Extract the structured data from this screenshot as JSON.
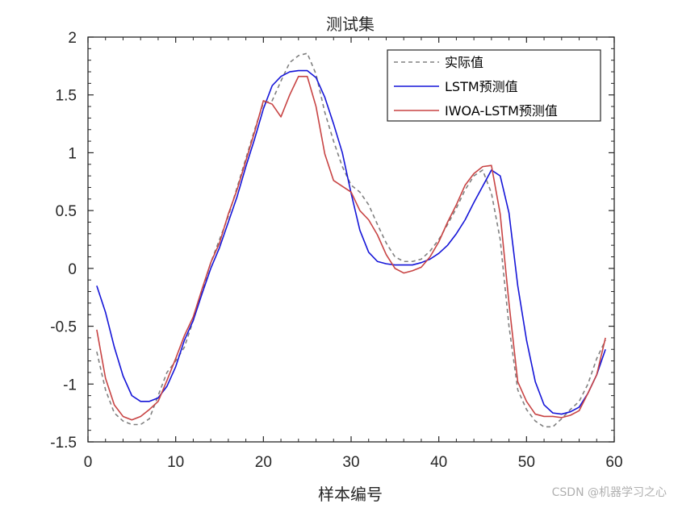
{
  "chart_data": {
    "type": "line",
    "title": "测试集",
    "xlabel": "样本编号",
    "ylabel": "",
    "xlim": [
      0,
      60
    ],
    "ylim": [
      -1.5,
      2
    ],
    "xticks": [
      0,
      10,
      20,
      30,
      40,
      50,
      60
    ],
    "yticks": [
      -1.5,
      -1,
      -0.5,
      0,
      0.5,
      1,
      1.5,
      2
    ],
    "xtick_labels": [
      "0",
      "10",
      "20",
      "30",
      "40",
      "50",
      "60"
    ],
    "ytick_labels": [
      "-1.5",
      "-1",
      "-0.5",
      "0",
      "0.5",
      "1",
      "1.5",
      "2"
    ],
    "grid": false,
    "legend_position": "top-right",
    "x": [
      1,
      2,
      3,
      4,
      5,
      6,
      7,
      8,
      9,
      10,
      11,
      12,
      13,
      14,
      15,
      16,
      17,
      18,
      19,
      20,
      21,
      22,
      23,
      24,
      25,
      26,
      27,
      28,
      29,
      30,
      31,
      32,
      33,
      34,
      35,
      36,
      37,
      38,
      39,
      40,
      41,
      42,
      43,
      44,
      45,
      46,
      47,
      48,
      49,
      50,
      51,
      52,
      53,
      54,
      55,
      56,
      57,
      58,
      59
    ],
    "series": [
      {
        "name": "实际值",
        "color": "#808080",
        "style": "dashed",
        "values": [
          -0.72,
          -1.05,
          -1.25,
          -1.32,
          -1.35,
          -1.35,
          -1.3,
          -1.1,
          -0.9,
          -0.8,
          -0.68,
          -0.45,
          -0.2,
          0.05,
          0.25,
          0.45,
          0.7,
          0.95,
          1.2,
          1.43,
          1.45,
          1.62,
          1.78,
          1.84,
          1.86,
          1.68,
          1.35,
          1.1,
          0.88,
          0.72,
          0.66,
          0.55,
          0.38,
          0.22,
          0.1,
          0.06,
          0.06,
          0.08,
          0.15,
          0.25,
          0.38,
          0.52,
          0.68,
          0.8,
          0.85,
          0.65,
          0.25,
          -0.5,
          -1.05,
          -1.22,
          -1.32,
          -1.37,
          -1.37,
          -1.3,
          -1.22,
          -1.15,
          -1.0,
          -0.78,
          -0.62
        ]
      },
      {
        "name": "LSTM预测值",
        "color": "#1515d8",
        "style": "solid",
        "values": [
          -0.15,
          -0.38,
          -0.68,
          -0.93,
          -1.1,
          -1.15,
          -1.15,
          -1.12,
          -1.02,
          -0.85,
          -0.62,
          -0.45,
          -0.22,
          0.0,
          0.18,
          0.4,
          0.62,
          0.88,
          1.12,
          1.38,
          1.58,
          1.66,
          1.7,
          1.71,
          1.71,
          1.65,
          1.48,
          1.25,
          1.0,
          0.65,
          0.33,
          0.14,
          0.06,
          0.04,
          0.03,
          0.03,
          0.03,
          0.05,
          0.08,
          0.13,
          0.2,
          0.3,
          0.42,
          0.57,
          0.71,
          0.85,
          0.8,
          0.48,
          -0.15,
          -0.62,
          -0.98,
          -1.18,
          -1.25,
          -1.26,
          -1.24,
          -1.2,
          -1.08,
          -0.92,
          -0.7
        ]
      },
      {
        "name": "IWOA-LSTM预测值",
        "color": "#c84444",
        "style": "solid",
        "values": [
          -0.53,
          -0.95,
          -1.18,
          -1.28,
          -1.31,
          -1.28,
          -1.22,
          -1.15,
          -0.97,
          -0.78,
          -0.58,
          -0.42,
          -0.18,
          0.05,
          0.22,
          0.47,
          0.68,
          0.93,
          1.18,
          1.45,
          1.42,
          1.31,
          1.5,
          1.66,
          1.66,
          1.4,
          0.99,
          0.76,
          0.71,
          0.66,
          0.5,
          0.42,
          0.29,
          0.12,
          0.0,
          -0.04,
          -0.02,
          0.01,
          0.1,
          0.23,
          0.4,
          0.55,
          0.72,
          0.82,
          0.88,
          0.89,
          0.47,
          -0.3,
          -0.98,
          -1.15,
          -1.26,
          -1.28,
          -1.28,
          -1.29,
          -1.27,
          -1.23,
          -1.08,
          -0.92,
          -0.6
        ]
      }
    ]
  },
  "watermark": "CSDN @机器学习之心"
}
